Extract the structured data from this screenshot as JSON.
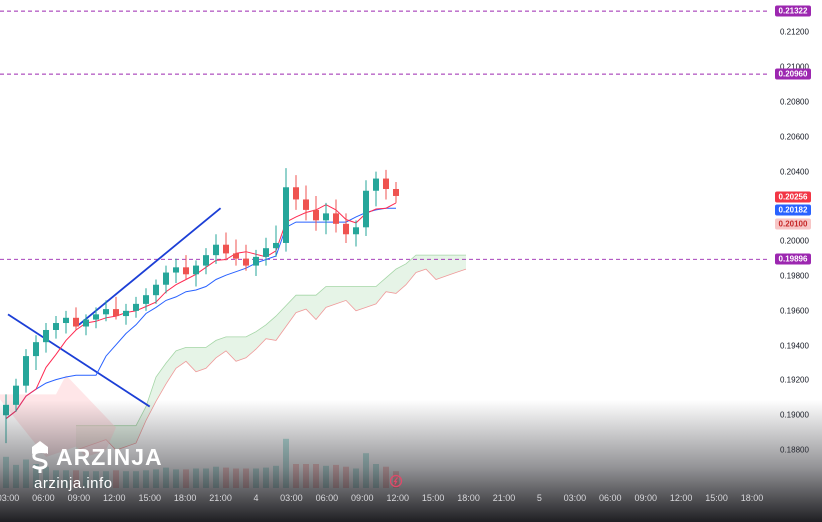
{
  "chart_data": {
    "type": "candlestick",
    "title": "",
    "xlabel": "",
    "ylabel": "",
    "ylim": [
      0.1872,
      0.2134
    ],
    "y_ticks": [
      "0.21200",
      "0.21000",
      "0.20800",
      "0.20600",
      "0.20400",
      "0.20000",
      "0.19800",
      "0.19600",
      "0.19400",
      "0.19200",
      "0.19000",
      "0.18800"
    ],
    "x_tick_labels": [
      "03:00",
      "06:00",
      "09:00",
      "12:00",
      "15:00",
      "18:00",
      "21:00",
      "4",
      "03:00",
      "06:00",
      "09:00",
      "12:00",
      "15:00",
      "18:00",
      "21:00",
      "5",
      "03:00",
      "06:00",
      "09:00",
      "12:00",
      "15:00",
      "18:00"
    ],
    "horizontal_levels": [
      {
        "value": "0.21322",
        "color": "#9c27b0"
      },
      {
        "value": "0.20960",
        "color": "#9c27b0"
      },
      {
        "value": "0.19896",
        "color": "#9c27b0"
      }
    ],
    "price_badges": [
      {
        "value": "0.20256",
        "color": "#f23645"
      },
      {
        "value": "0.20182",
        "color": "#2962ff"
      },
      {
        "value": "0.20100",
        "color": "#f7c6c6"
      }
    ],
    "candles_ohlc": [
      [
        0.19,
        0.1912,
        0.1884,
        0.1906
      ],
      [
        0.1906,
        0.1921,
        0.1902,
        0.1917
      ],
      [
        0.1917,
        0.1938,
        0.1913,
        0.1934
      ],
      [
        0.1934,
        0.1946,
        0.1926,
        0.1942
      ],
      [
        0.1942,
        0.1953,
        0.1936,
        0.1949
      ],
      [
        0.1949,
        0.1957,
        0.1944,
        0.1953
      ],
      [
        0.1953,
        0.196,
        0.1947,
        0.1956
      ],
      [
        0.1956,
        0.1962,
        0.1949,
        0.1951
      ],
      [
        0.1951,
        0.1958,
        0.1946,
        0.1955
      ],
      [
        0.1955,
        0.1962,
        0.195,
        0.1958
      ],
      [
        0.1958,
        0.1966,
        0.1954,
        0.1961
      ],
      [
        0.1961,
        0.1968,
        0.1955,
        0.1957
      ],
      [
        0.1957,
        0.1964,
        0.1952,
        0.196
      ],
      [
        0.196,
        0.1968,
        0.1956,
        0.1964
      ],
      [
        0.1964,
        0.1973,
        0.196,
        0.1969
      ],
      [
        0.1969,
        0.1978,
        0.1964,
        0.1975
      ],
      [
        0.1975,
        0.1986,
        0.197,
        0.1982
      ],
      [
        0.1982,
        0.199,
        0.1976,
        0.1985
      ],
      [
        0.1985,
        0.1992,
        0.1978,
        0.1981
      ],
      [
        0.1981,
        0.1989,
        0.1974,
        0.1986
      ],
      [
        0.1986,
        0.1996,
        0.1981,
        0.1992
      ],
      [
        0.1992,
        0.2004,
        0.1987,
        0.1998
      ],
      [
        0.1998,
        0.2005,
        0.1989,
        0.1993
      ],
      [
        0.1993,
        0.2001,
        0.1986,
        0.199
      ],
      [
        0.199,
        0.1998,
        0.1983,
        0.1986
      ],
      [
        0.1986,
        0.1995,
        0.198,
        0.1991
      ],
      [
        0.1991,
        0.2002,
        0.1986,
        0.1996
      ],
      [
        0.1996,
        0.2009,
        0.1991,
        0.1999
      ],
      [
        0.1999,
        0.2042,
        0.1994,
        0.2031
      ],
      [
        0.2031,
        0.2038,
        0.2018,
        0.2024
      ],
      [
        0.2024,
        0.2032,
        0.2012,
        0.2018
      ],
      [
        0.2018,
        0.2026,
        0.2006,
        0.2012
      ],
      [
        0.2012,
        0.2022,
        0.2004,
        0.2016
      ],
      [
        0.2016,
        0.2024,
        0.2005,
        0.201
      ],
      [
        0.201,
        0.2016,
        0.1999,
        0.2004
      ],
      [
        0.2004,
        0.2012,
        0.1997,
        0.2008
      ],
      [
        0.2008,
        0.2035,
        0.2003,
        0.2029
      ],
      [
        0.2029,
        0.204,
        0.202,
        0.2036
      ],
      [
        0.2036,
        0.2041,
        0.2024,
        0.203
      ],
      [
        0.203,
        0.2034,
        0.2022,
        0.2026
      ]
    ],
    "trendlines": [
      {
        "from": [
          "03:00",
          0.1958
        ],
        "to": [
          "15:00",
          0.1905
        ],
        "color": "#1c3fd6"
      },
      {
        "from": [
          "09:00",
          0.1952
        ],
        "to": [
          "21:00",
          0.2019
        ],
        "color": "#1c3fd6"
      }
    ],
    "colors": {
      "up": "#26a69a",
      "down": "#ef5350",
      "conversion": "#ff2a52",
      "base": "#2962ff",
      "cloud_up": "#c8e6c9",
      "cloud_down": "#ffcdd2",
      "level": "#9c27b0"
    }
  },
  "brand": {
    "name": "ARZINJA",
    "url": "arzinja.info",
    "icon": "arzinja-logo-icon"
  },
  "icons": {
    "replay": "replay-icon"
  }
}
